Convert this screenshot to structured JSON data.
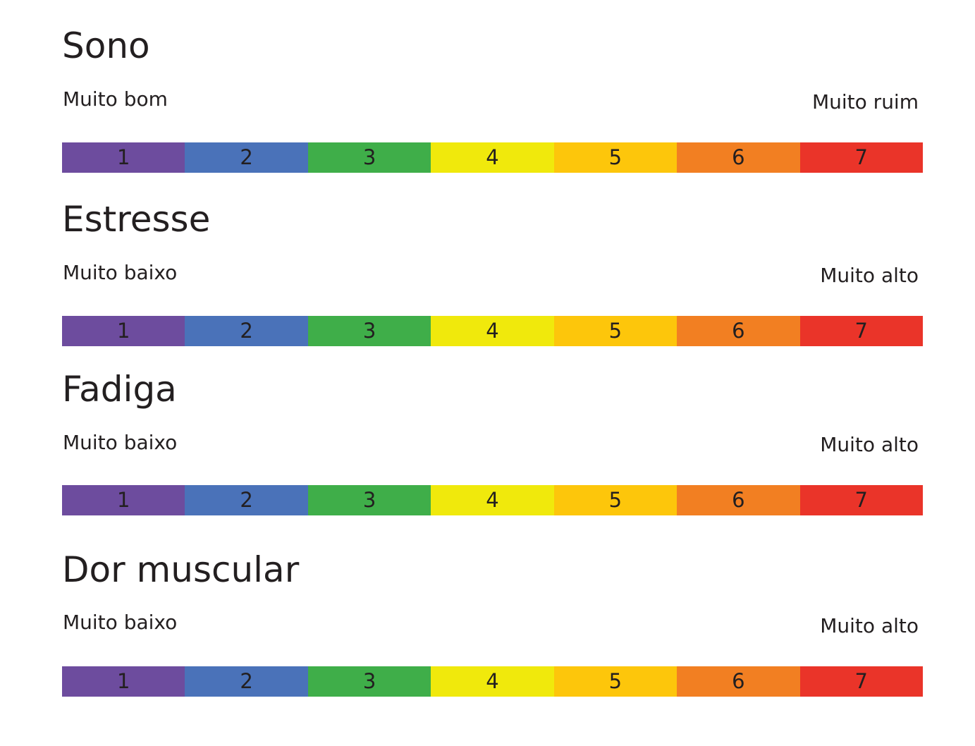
{
  "colors": [
    "#6d4c9e",
    "#4a72b9",
    "#3fae49",
    "#f0e90c",
    "#fdc60b",
    "#f27f22",
    "#ea3429"
  ],
  "scales": [
    {
      "title": "Sono",
      "left_label": "Muito bom",
      "right_label": "Muito ruim",
      "values": [
        "1",
        "2",
        "3",
        "4",
        "5",
        "6",
        "7"
      ]
    },
    {
      "title": "Estresse",
      "left_label": "Muito baixo",
      "right_label": "Muito alto",
      "values": [
        "1",
        "2",
        "3",
        "4",
        "5",
        "6",
        "7"
      ]
    },
    {
      "title": "Fadiga",
      "left_label": "Muito baixo",
      "right_label": "Muito alto",
      "values": [
        "1",
        "2",
        "3",
        "4",
        "5",
        "6",
        "7"
      ]
    },
    {
      "title": "Dor muscular",
      "left_label": "Muito baixo",
      "right_label": "Muito alto",
      "values": [
        "1",
        "2",
        "3",
        "4",
        "5",
        "6",
        "7"
      ]
    }
  ]
}
